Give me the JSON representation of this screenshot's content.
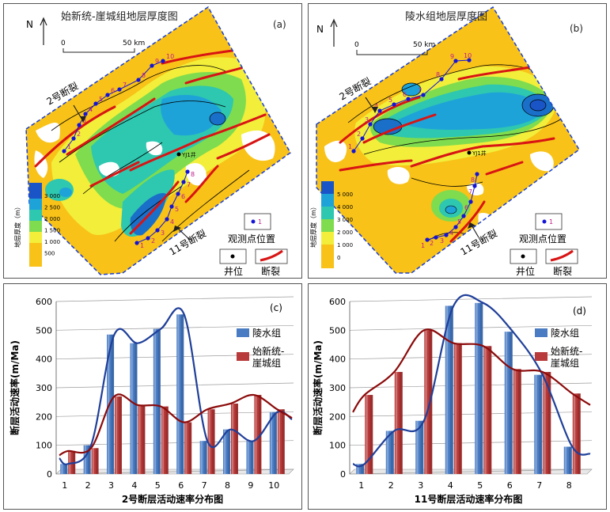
{
  "panel_a": {
    "title": "始新统-崖城组地层厚度图",
    "label": "(a)",
    "north": "N",
    "scale_zero": "0",
    "scale_km": "50 km",
    "fault_label": "2号断裂",
    "fault_label_b": "11号断裂",
    "well_label": "YJ1井",
    "legend_title": "地层厚度（m）",
    "legend_ticks": [
      "3 000",
      "2 500",
      "2 000",
      "1 500",
      "1 000",
      "500"
    ],
    "legend_obs_point": "观测点位置",
    "legend_well": "井位",
    "legend_fault": "断裂",
    "obs_num": "1",
    "points_fault2": [
      "1",
      "2",
      "3",
      "4",
      "5",
      "6",
      "7",
      "8",
      "9",
      "10"
    ],
    "points_fault11": [
      "1",
      "2",
      "3",
      "4",
      "5",
      "6",
      "7",
      "8"
    ]
  },
  "panel_b": {
    "title": "陵水组地层厚度图",
    "label": "(b)",
    "north": "N",
    "scale_zero": "0",
    "scale_km": "50 km",
    "fault_label": "2号断裂",
    "fault_label_b": "11号断裂",
    "well_label": "YJ1井",
    "legend_title": "地层厚度（m）",
    "legend_ticks": [
      "5 000",
      "4 000",
      "3 000",
      "2 000",
      "1 000",
      "0"
    ],
    "legend_obs_point": "观测点位置",
    "legend_well": "井位",
    "legend_fault": "断裂",
    "obs_num": "1",
    "points_fault2": [
      "1",
      "2",
      "3",
      "4",
      "5",
      "6",
      "7",
      "8",
      "9",
      "10"
    ],
    "points_fault11": [
      "1",
      "2",
      "3",
      "4",
      "5",
      "6",
      "7",
      "8"
    ]
  },
  "colors": {
    "bar_ls": "#4a7cc4",
    "bar_yc": "#b83a3a",
    "curve_ls": "#1f3f99",
    "curve_yc": "#8b0a0a",
    "point": "#1414d8",
    "point_label": "#c01a8a",
    "fault": "#d81414"
  },
  "chart_data": [
    {
      "type": "bar",
      "label": "(c)",
      "xlabel": "2号断层活动速率分布图",
      "ylabel": "断层活动速率(m/Ma)",
      "ylim": [
        0,
        600
      ],
      "yticks": [
        "0",
        "100",
        "200",
        "300",
        "400",
        "500",
        "600"
      ],
      "categories": [
        "1",
        "2",
        "3",
        "4",
        "5",
        "6",
        "7",
        "8",
        "9",
        "10"
      ],
      "series": [
        {
          "name": "陵水组",
          "values": [
            35,
            100,
            485,
            455,
            505,
            555,
            115,
            155,
            115,
            215
          ]
        },
        {
          "name": "始新统-崖城组",
          "values": [
            80,
            90,
            270,
            240,
            235,
            180,
            225,
            245,
            275,
            225
          ]
        }
      ],
      "legend_position": "top-right",
      "grid": "horizontal"
    },
    {
      "type": "bar",
      "label": "(d)",
      "xlabel": "11号断层活动速率分布图",
      "ylabel": "断层活动速率(m/Ma)",
      "ylim": [
        0,
        600
      ],
      "yticks": [
        "0",
        "100",
        "200",
        "300",
        "400",
        "500",
        "600"
      ],
      "categories": [
        "1",
        "2",
        "3",
        "4",
        "5",
        "6",
        "7",
        "8"
      ],
      "series": [
        {
          "name": "陵水组",
          "values": [
            35,
            150,
            185,
            585,
            595,
            495,
            345,
            95
          ]
        },
        {
          "name": "始新统-崖城组",
          "values": [
            275,
            355,
            500,
            455,
            445,
            365,
            355,
            280
          ]
        }
      ],
      "legend_position": "top-right",
      "grid": "horizontal"
    }
  ]
}
